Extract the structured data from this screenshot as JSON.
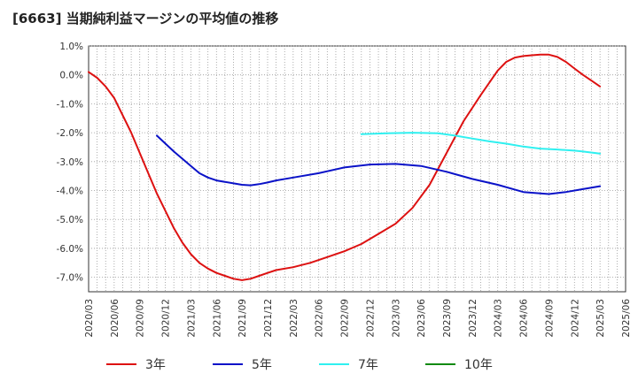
{
  "chart_data": {
    "type": "line",
    "title": "[6663]  当期純利益マージンの平均値の推移",
    "xlabel": "",
    "ylabel": "",
    "ylim": [
      -7.5,
      1.0
    ],
    "yticks": [
      "1.0%",
      "0.0%",
      "-1.0%",
      "-2.0%",
      "-3.0%",
      "-4.0%",
      "-5.0%",
      "-6.0%",
      "-7.0%"
    ],
    "xticks": [
      "2020/03",
      "2020/06",
      "2020/09",
      "2020/12",
      "2021/03",
      "2021/06",
      "2021/09",
      "2021/12",
      "2022/03",
      "2022/06",
      "2022/09",
      "2022/12",
      "2023/03",
      "2023/06",
      "2023/09",
      "2023/12",
      "2024/03",
      "2024/06",
      "2024/09",
      "2024/12",
      "2025/03",
      "2025/06"
    ],
    "grid": true,
    "legend_position": "bottom",
    "series": [
      {
        "name": "3年",
        "color": "#dd1111",
        "points": [
          [
            "2020/03",
            0.1
          ],
          [
            "2020/04",
            -0.1
          ],
          [
            "2020/05",
            -0.4
          ],
          [
            "2020/06",
            -0.8
          ],
          [
            "2020/07",
            -1.4
          ],
          [
            "2020/08",
            -2.0
          ],
          [
            "2020/09",
            -2.7
          ],
          [
            "2020/10",
            -3.4
          ],
          [
            "2020/11",
            -4.1
          ],
          [
            "2020/12",
            -4.7
          ],
          [
            "2021/01",
            -5.3
          ],
          [
            "2021/02",
            -5.8
          ],
          [
            "2021/03",
            -6.2
          ],
          [
            "2021/04",
            -6.5
          ],
          [
            "2021/05",
            -6.7
          ],
          [
            "2021/06",
            -6.85
          ],
          [
            "2021/07",
            -6.95
          ],
          [
            "2021/08",
            -7.05
          ],
          [
            "2021/09",
            -7.1
          ],
          [
            "2021/10",
            -7.05
          ],
          [
            "2021/11",
            -6.95
          ],
          [
            "2021/12",
            -6.85
          ],
          [
            "2022/01",
            -6.75
          ],
          [
            "2022/03",
            -6.65
          ],
          [
            "2022/05",
            -6.5
          ],
          [
            "2022/07",
            -6.3
          ],
          [
            "2022/09",
            -6.1
          ],
          [
            "2022/11",
            -5.85
          ],
          [
            "2023/01",
            -5.5
          ],
          [
            "2023/03",
            -5.15
          ],
          [
            "2023/05",
            -4.6
          ],
          [
            "2023/07",
            -3.8
          ],
          [
            "2023/09",
            -2.7
          ],
          [
            "2023/11",
            -1.6
          ],
          [
            "2024/01",
            -0.7
          ],
          [
            "2024/03",
            0.15
          ],
          [
            "2024/04",
            0.45
          ],
          [
            "2024/05",
            0.6
          ],
          [
            "2024/06",
            0.65
          ],
          [
            "2024/07",
            0.68
          ],
          [
            "2024/08",
            0.7
          ],
          [
            "2024/09",
            0.7
          ],
          [
            "2024/10",
            0.62
          ],
          [
            "2024/11",
            0.45
          ],
          [
            "2024/12",
            0.22
          ],
          [
            "2025/01",
            0.0
          ],
          [
            "2025/02",
            -0.2
          ],
          [
            "2025/03",
            -0.4
          ]
        ]
      },
      {
        "name": "5年",
        "color": "#0a12c8",
        "points": [
          [
            "2020/11",
            -2.1
          ],
          [
            "2021/01",
            -2.65
          ],
          [
            "2021/03",
            -3.15
          ],
          [
            "2021/04",
            -3.4
          ],
          [
            "2021/05",
            -3.55
          ],
          [
            "2021/06",
            -3.65
          ],
          [
            "2021/08",
            -3.75
          ],
          [
            "2021/09",
            -3.8
          ],
          [
            "2021/10",
            -3.82
          ],
          [
            "2021/11",
            -3.78
          ],
          [
            "2021/12",
            -3.72
          ],
          [
            "2022/01",
            -3.65
          ],
          [
            "2022/03",
            -3.55
          ],
          [
            "2022/06",
            -3.4
          ],
          [
            "2022/09",
            -3.2
          ],
          [
            "2022/12",
            -3.1
          ],
          [
            "2023/03",
            -3.08
          ],
          [
            "2023/06",
            -3.15
          ],
          [
            "2023/09",
            -3.35
          ],
          [
            "2023/12",
            -3.6
          ],
          [
            "2024/03",
            -3.8
          ],
          [
            "2024/06",
            -4.05
          ],
          [
            "2024/09",
            -4.12
          ],
          [
            "2024/11",
            -4.05
          ],
          [
            "2025/01",
            -3.95
          ],
          [
            "2025/03",
            -3.85
          ]
        ]
      },
      {
        "name": "7年",
        "color": "#2ff0f0",
        "points": [
          [
            "2022/11",
            -2.05
          ],
          [
            "2023/02",
            -2.02
          ],
          [
            "2023/05",
            -2.0
          ],
          [
            "2023/08",
            -2.02
          ],
          [
            "2023/10",
            -2.1
          ],
          [
            "2023/12",
            -2.2
          ],
          [
            "2024/02",
            -2.3
          ],
          [
            "2024/04",
            -2.38
          ],
          [
            "2024/06",
            -2.48
          ],
          [
            "2024/08",
            -2.55
          ],
          [
            "2024/10",
            -2.58
          ],
          [
            "2024/12",
            -2.62
          ],
          [
            "2025/01",
            -2.65
          ],
          [
            "2025/03",
            -2.72
          ]
        ]
      },
      {
        "name": "10年",
        "color": "#128a12",
        "points": []
      }
    ]
  }
}
